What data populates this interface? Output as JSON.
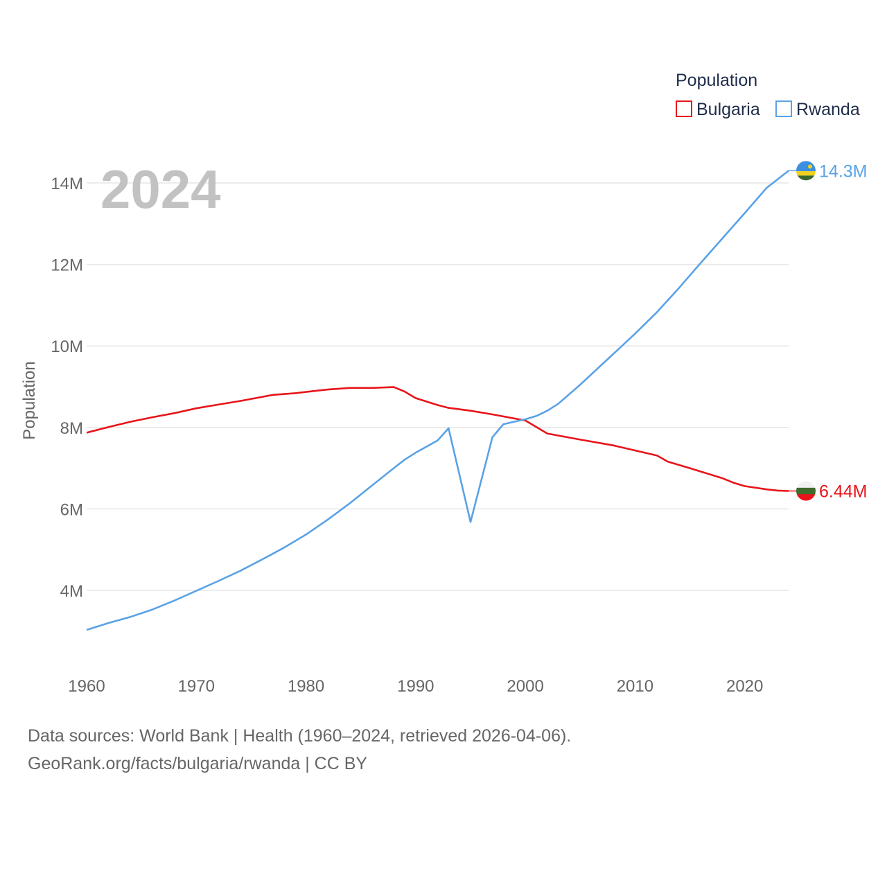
{
  "chart_data": {
    "type": "line",
    "title": "Population",
    "year_label": "2024",
    "xlabel": "",
    "ylabel": "Population",
    "xlim": [
      1960,
      2024
    ],
    "ylim": [
      2400000,
      14800000
    ],
    "x_ticks": [
      1960,
      1970,
      1980,
      1990,
      2000,
      2010,
      2020
    ],
    "x_tick_labels": [
      "1960",
      "1970",
      "1980",
      "1990",
      "2000",
      "2010",
      "2020"
    ],
    "y_ticks": [
      4000000,
      6000000,
      8000000,
      10000000,
      12000000,
      14000000
    ],
    "y_tick_labels": [
      "4M",
      "6M",
      "8M",
      "10M",
      "12M",
      "14M"
    ],
    "grid": true,
    "legend_position": "top-right",
    "series": [
      {
        "name": "Bulgaria",
        "color": "#e8141a",
        "end_label": "6.44M",
        "flag": "bulgaria-flag",
        "flag_colors": [
          "#f2f2f2",
          "#3f6b2d",
          "#e8141a"
        ],
        "x": [
          1960,
          1962,
          1964,
          1966,
          1968,
          1970,
          1972,
          1974,
          1977,
          1979,
          1980,
          1982,
          1984,
          1986,
          1988,
          1989,
          1990,
          1992,
          1993,
          1995,
          1997,
          2000,
          2002,
          2005,
          2008,
          2012,
          2013,
          2015,
          2018,
          2019,
          2020,
          2022,
          2023,
          2024
        ],
        "values": [
          7870000,
          8010000,
          8140000,
          8250000,
          8350000,
          8470000,
          8560000,
          8650000,
          8800000,
          8840000,
          8870000,
          8930000,
          8970000,
          8970000,
          8990000,
          8880000,
          8720000,
          8550000,
          8480000,
          8410000,
          8320000,
          8170000,
          7850000,
          7700000,
          7560000,
          7310000,
          7160000,
          7000000,
          6750000,
          6640000,
          6560000,
          6480000,
          6450000,
          6440000
        ]
      },
      {
        "name": "Rwanda",
        "color": "#5aa2e6",
        "end_label": "14.3M",
        "flag": "rwanda-flag",
        "flag_colors": [
          "#3b8fe0",
          "#f0d020",
          "#3a6b2d"
        ],
        "x": [
          1960,
          1962,
          1964,
          1966,
          1968,
          1970,
          1972,
          1974,
          1976,
          1978,
          1980,
          1982,
          1984,
          1986,
          1988,
          1989,
          1990,
          1992,
          1993,
          1995,
          1997,
          1998,
          2000,
          2001,
          2002,
          2003,
          2005,
          2008,
          2010,
          2012,
          2014,
          2016,
          2018,
          2020,
          2022,
          2024
        ],
        "values": [
          3030000,
          3200000,
          3350000,
          3530000,
          3750000,
          3990000,
          4230000,
          4480000,
          4760000,
          5050000,
          5370000,
          5740000,
          6140000,
          6570000,
          7000000,
          7210000,
          7380000,
          7680000,
          7980000,
          5680000,
          7760000,
          8080000,
          8200000,
          8280000,
          8410000,
          8580000,
          9050000,
          9800000,
          10300000,
          10830000,
          11420000,
          12040000,
          12650000,
          13260000,
          13880000,
          14300000
        ]
      }
    ]
  },
  "footer": {
    "line1": "Data sources: World Bank | Health (1960–2024, retrieved 2026-04-06).",
    "line2": "GeoRank.org/facts/bulgaria/rwanda | CC BY"
  }
}
